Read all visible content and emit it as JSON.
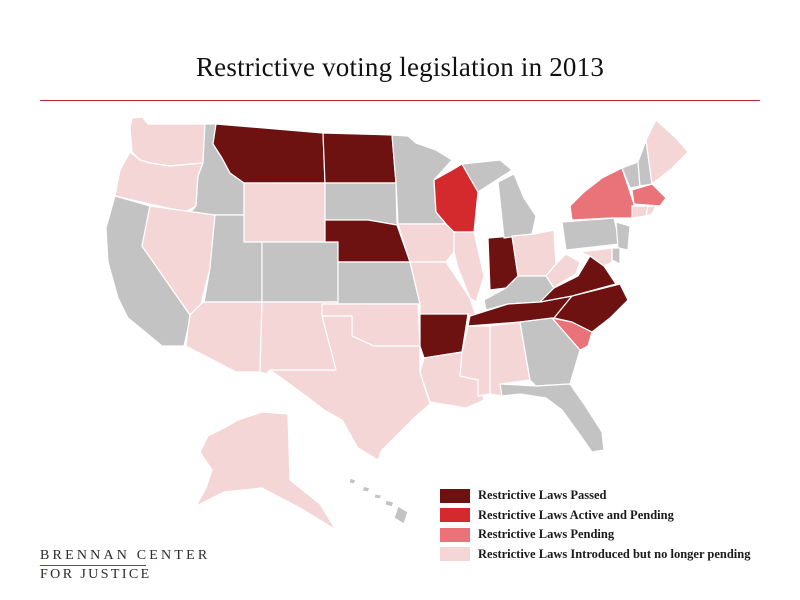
{
  "title": "Restrictive voting legislation in 2013",
  "colors": {
    "passed": "#6e1211",
    "active_pending": "#d42a2e",
    "pending": "#ea737a",
    "introduced": "#f5d6d6",
    "none": "#c3c3c3",
    "border": "#ffffff",
    "rule": "#c0262c"
  },
  "legend": [
    {
      "key": "passed",
      "label": "Restrictive Laws Passed"
    },
    {
      "key": "active_pending",
      "label": "Restrictive Laws Active and Pending"
    },
    {
      "key": "pending",
      "label": "Restrictive Laws Pending"
    },
    {
      "key": "introduced",
      "label": "Restrictive Laws Introduced but no longer pending"
    }
  ],
  "states": {
    "WA": "introduced",
    "OR": "introduced",
    "CA": "none",
    "ID": "none",
    "NV": "introduced",
    "MT": "passed",
    "WY": "introduced",
    "UT": "none",
    "AZ": "introduced",
    "CO": "none",
    "NM": "introduced",
    "ND": "passed",
    "SD": "none",
    "NE": "passed",
    "KS": "none",
    "OK": "introduced",
    "TX": "introduced",
    "MN": "none",
    "IA": "introduced",
    "MO": "introduced",
    "AR": "passed",
    "LA": "introduced",
    "WI": "active_pending",
    "IL": "introduced",
    "IN": "passed",
    "MI": "none",
    "OH": "introduced",
    "KY": "none",
    "TN": "passed",
    "MS": "introduced",
    "AL": "introduced",
    "GA": "none",
    "FL": "none",
    "SC": "pending",
    "NC": "passed",
    "VA": "passed",
    "WV": "introduced",
    "PA": "none",
    "NY": "pending",
    "VT": "none",
    "NH": "none",
    "ME": "introduced",
    "MA": "pending",
    "RI": "introduced",
    "CT": "introduced",
    "NJ": "none",
    "DE": "none",
    "MD": "introduced",
    "AK": "introduced",
    "HI": "none"
  },
  "logo": {
    "line1": "BRENNAN CENTER",
    "line2": "FOR JUSTICE"
  }
}
